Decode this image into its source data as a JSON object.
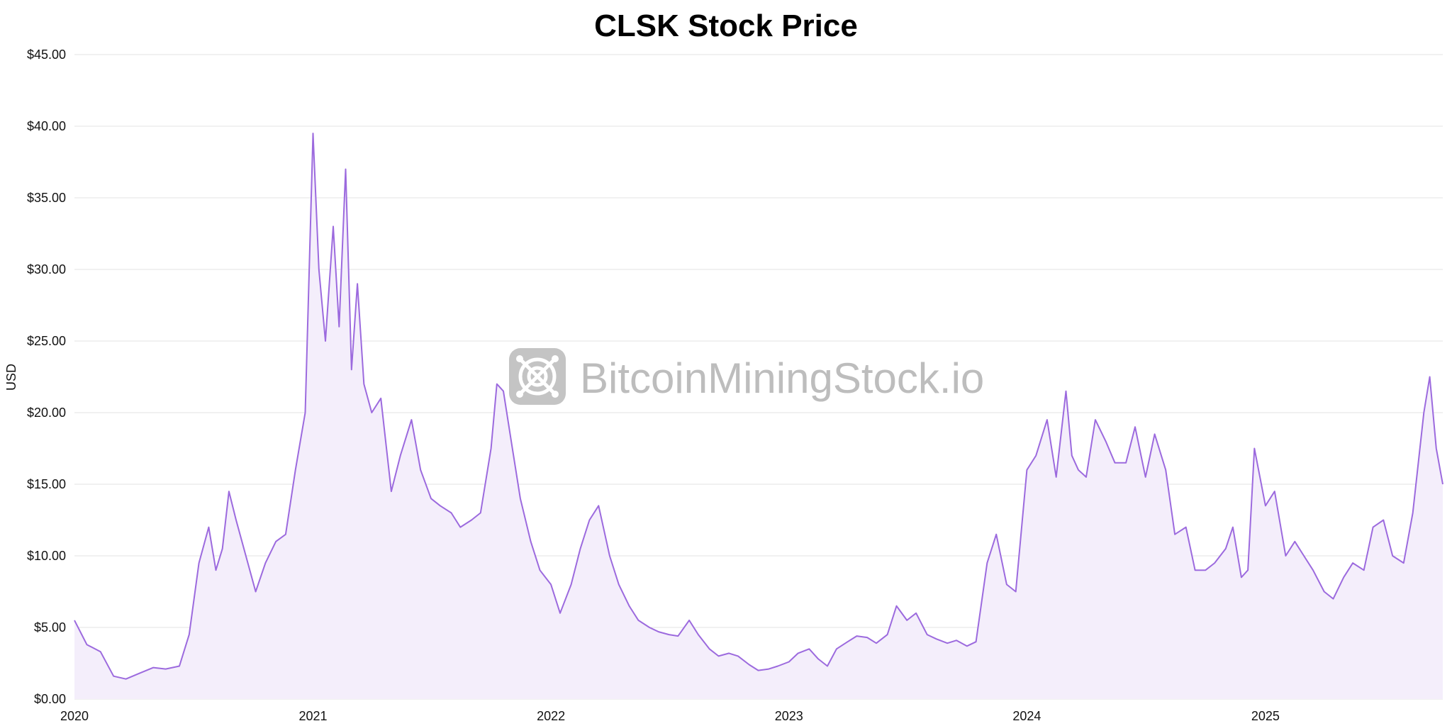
{
  "chart_data": {
    "type": "area",
    "title": "CLSK Stock Price",
    "ylabel": "USD",
    "xlabel": "",
    "y_tick_labels": [
      "$0.00",
      "$5.00",
      "$10.00",
      "$15.00",
      "$20.00",
      "$25.00",
      "$30.00",
      "$35.00",
      "$40.00",
      "$45.00"
    ],
    "x_tick_labels": [
      "2020",
      "2021",
      "2022",
      "2023",
      "2024",
      "2025"
    ],
    "ylim": [
      0,
      45
    ],
    "xlim": [
      "2020-01-01",
      "2025-09-30"
    ],
    "grid": true,
    "colors": {
      "line": "#9c6ade",
      "fill": "#f4eefb",
      "grid": "#e3e3e3"
    },
    "series": [
      {
        "x": [
          "2020-01-01",
          "2020-01-20",
          "2020-02-10",
          "2020-03-01",
          "2020-03-20",
          "2020-04-10",
          "2020-05-01",
          "2020-05-20",
          "2020-06-10",
          "2020-06-25",
          "2020-07-10",
          "2020-07-25",
          "2020-08-05",
          "2020-08-15",
          "2020-08-25",
          "2020-09-05",
          "2020-09-20",
          "2020-10-05",
          "2020-10-20",
          "2020-11-05",
          "2020-11-20",
          "2020-12-05",
          "2020-12-20",
          "2021-01-01",
          "2021-01-10",
          "2021-01-20",
          "2021-02-01",
          "2021-02-10",
          "2021-02-20",
          "2021-03-01",
          "2021-03-10",
          "2021-03-20",
          "2021-04-01",
          "2021-04-15",
          "2021-05-01",
          "2021-05-15",
          "2021-06-01",
          "2021-06-15",
          "2021-07-01",
          "2021-07-15",
          "2021-08-01",
          "2021-08-15",
          "2021-09-01",
          "2021-09-15",
          "2021-10-01",
          "2021-10-10",
          "2021-10-20",
          "2021-11-01",
          "2021-11-15",
          "2021-12-01",
          "2021-12-15",
          "2022-01-01",
          "2022-01-15",
          "2022-02-01",
          "2022-02-15",
          "2022-03-01",
          "2022-03-15",
          "2022-04-01",
          "2022-04-15",
          "2022-05-01",
          "2022-05-15",
          "2022-06-01",
          "2022-06-15",
          "2022-07-01",
          "2022-07-15",
          "2022-08-01",
          "2022-08-15",
          "2022-09-01",
          "2022-09-15",
          "2022-10-01",
          "2022-10-15",
          "2022-11-01",
          "2022-11-15",
          "2022-12-01",
          "2022-12-15",
          "2023-01-01",
          "2023-01-15",
          "2023-02-01",
          "2023-02-15",
          "2023-03-01",
          "2023-03-15",
          "2023-04-01",
          "2023-04-15",
          "2023-05-01",
          "2023-05-15",
          "2023-06-01",
          "2023-06-15",
          "2023-07-01",
          "2023-07-15",
          "2023-08-01",
          "2023-08-15",
          "2023-09-01",
          "2023-09-15",
          "2023-10-01",
          "2023-10-15",
          "2023-11-01",
          "2023-11-15",
          "2023-12-01",
          "2023-12-15",
          "2024-01-01",
          "2024-01-15",
          "2024-02-01",
          "2024-02-15",
          "2024-03-01",
          "2024-03-10",
          "2024-03-20",
          "2024-04-01",
          "2024-04-15",
          "2024-05-01",
          "2024-05-15",
          "2024-06-01",
          "2024-06-15",
          "2024-07-01",
          "2024-07-15",
          "2024-08-01",
          "2024-08-15",
          "2024-09-01",
          "2024-09-15",
          "2024-10-01",
          "2024-10-15",
          "2024-11-01",
          "2024-11-12",
          "2024-11-25",
          "2024-12-05",
          "2024-12-15",
          "2025-01-01",
          "2025-01-15",
          "2025-02-01",
          "2025-02-15",
          "2025-03-01",
          "2025-03-15",
          "2025-04-01",
          "2025-04-15",
          "2025-05-01",
          "2025-05-15",
          "2025-06-01",
          "2025-06-15",
          "2025-07-01",
          "2025-07-15",
          "2025-08-01",
          "2025-08-15",
          "2025-09-01",
          "2025-09-10",
          "2025-09-20",
          "2025-09-30"
        ],
        "values": [
          5.5,
          3.8,
          3.3,
          1.6,
          1.4,
          1.8,
          2.2,
          2.1,
          2.3,
          4.5,
          9.5,
          12.0,
          9.0,
          10.5,
          14.5,
          12.5,
          10.0,
          7.5,
          9.5,
          11.0,
          11.5,
          16.0,
          20.0,
          39.5,
          30.0,
          25.0,
          33.0,
          26.0,
          37.0,
          23.0,
          29.0,
          22.0,
          20.0,
          21.0,
          14.5,
          17.0,
          19.5,
          16.0,
          14.0,
          13.5,
          13.0,
          12.0,
          12.5,
          13.0,
          17.5,
          22.0,
          21.5,
          18.0,
          14.0,
          11.0,
          9.0,
          8.0,
          6.0,
          8.0,
          10.5,
          12.5,
          13.5,
          10.0,
          8.0,
          6.5,
          5.5,
          5.0,
          4.7,
          4.5,
          4.4,
          5.5,
          4.5,
          3.5,
          3.0,
          3.2,
          3.0,
          2.4,
          2.0,
          2.1,
          2.3,
          2.6,
          3.2,
          3.5,
          2.8,
          2.3,
          3.5,
          4.0,
          4.4,
          4.3,
          3.9,
          4.5,
          6.5,
          5.5,
          6.0,
          4.5,
          4.2,
          3.9,
          4.1,
          3.7,
          4.0,
          9.5,
          11.5,
          8.0,
          7.5,
          16.0,
          17.0,
          19.5,
          15.5,
          21.5,
          17.0,
          16.0,
          15.5,
          19.5,
          18.0,
          16.5,
          16.5,
          19.0,
          15.5,
          18.5,
          16.0,
          11.5,
          12.0,
          9.0,
          9.0,
          9.5,
          10.5,
          12.0,
          8.5,
          9.0,
          17.5,
          13.5,
          14.5,
          10.0,
          11.0,
          10.0,
          9.0,
          7.5,
          7.0,
          8.5,
          9.5,
          9.0,
          12.0,
          12.5,
          10.0,
          9.5,
          13.0,
          20.0,
          22.5,
          17.5,
          15.0
        ]
      }
    ]
  },
  "watermark": {
    "text": "BitcoinMiningStock.io",
    "icon": "mining-chip-logo-icon"
  }
}
